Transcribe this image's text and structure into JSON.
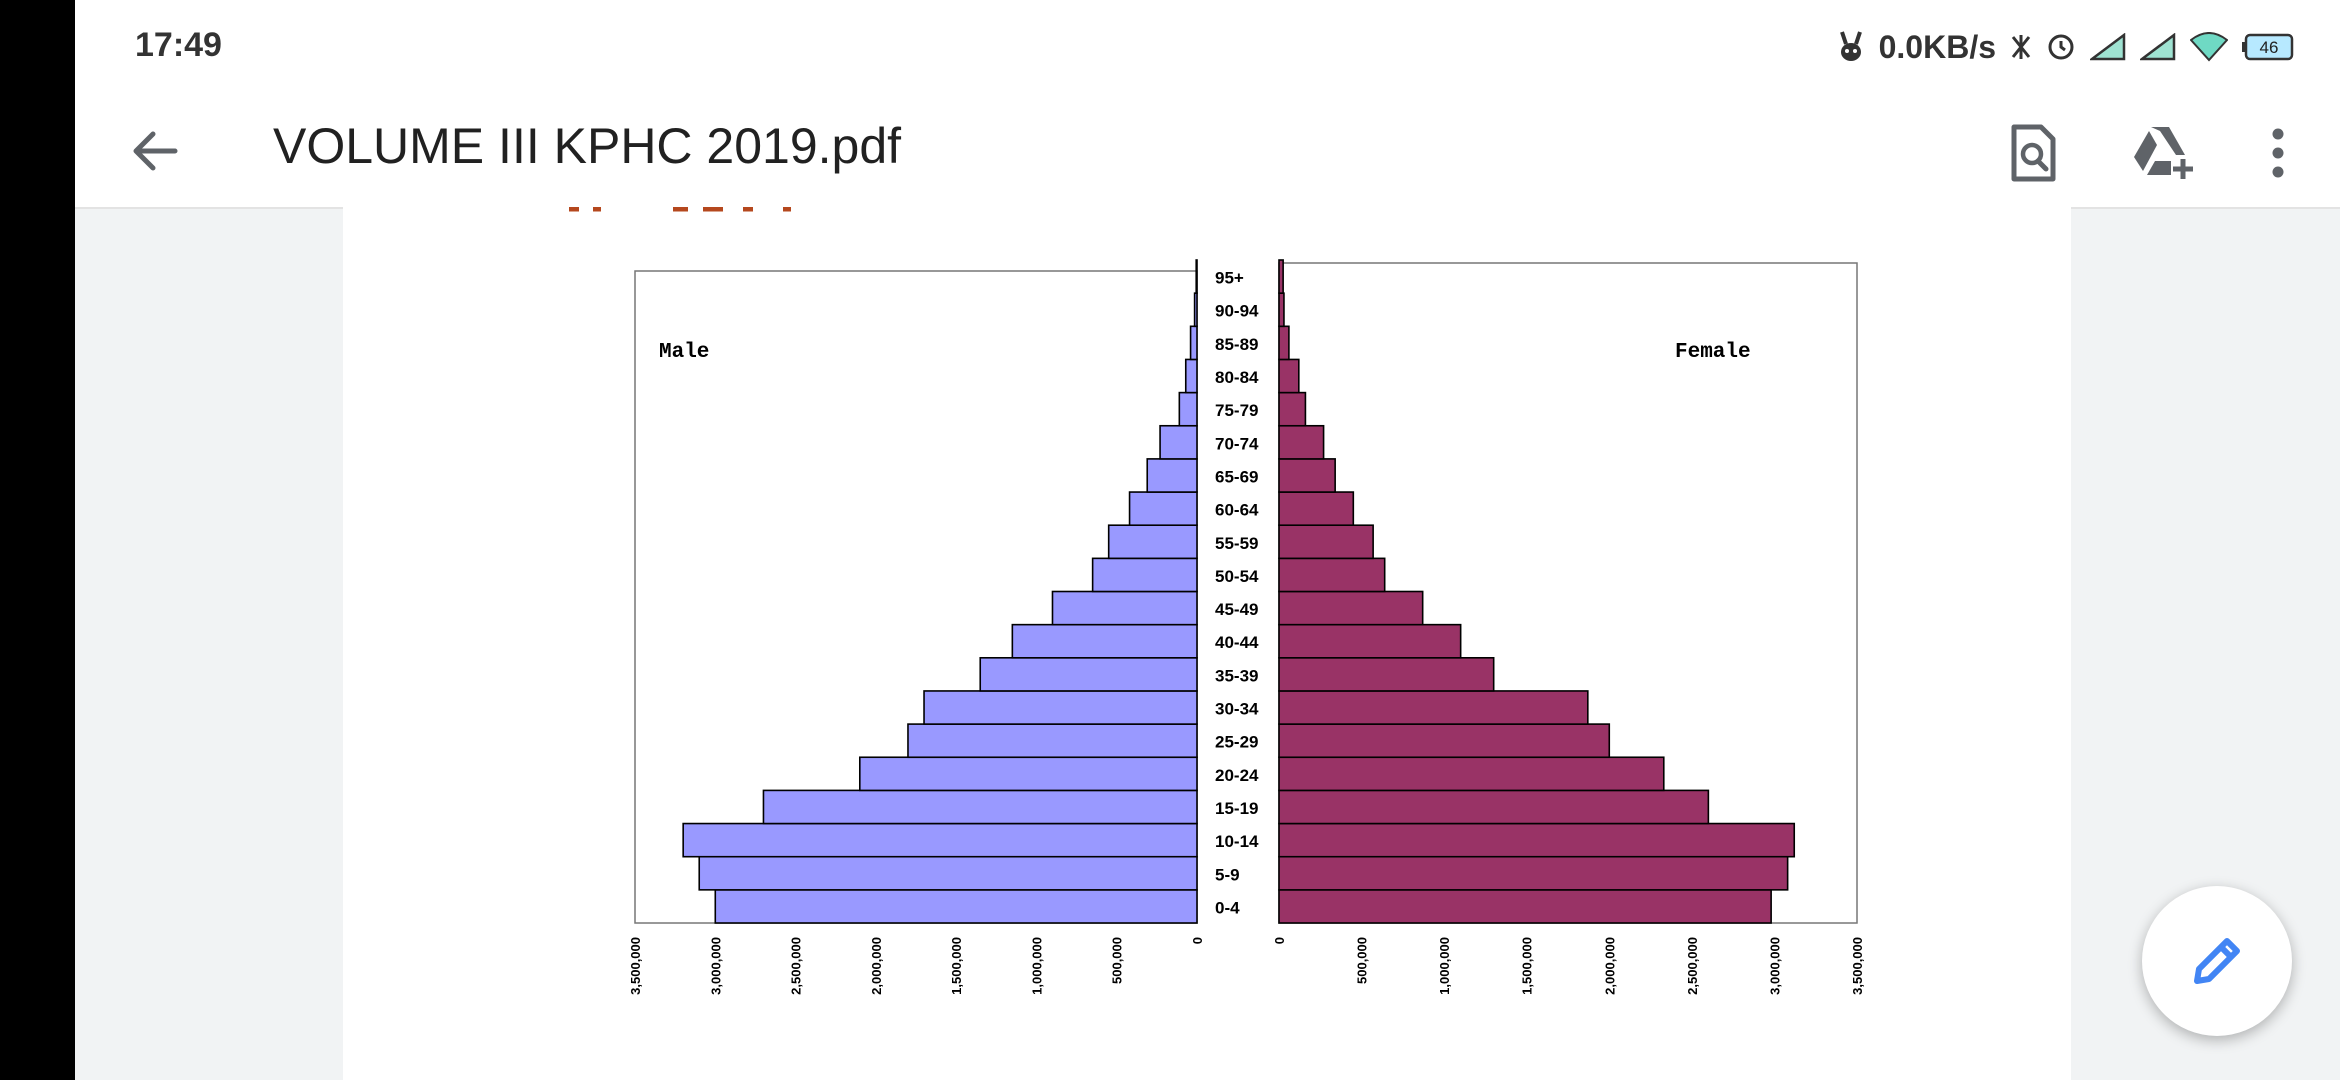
{
  "status_bar": {
    "time": "17:49",
    "net_speed": "0.0KB/s",
    "battery": "46",
    "icons": [
      "mascot-icon",
      "nfc-icon",
      "alarm-icon",
      "signal-icon",
      "signal-icon",
      "wifi-icon",
      "battery-icon"
    ]
  },
  "app_bar": {
    "title": "VOLUME III KPHC 2019.pdf",
    "icons": [
      "back-arrow-icon",
      "find-in-document-icon",
      "add-to-drive-icon",
      "more-vert-icon"
    ]
  },
  "fab": {
    "icon": "pencil-edit-icon"
  },
  "colors": {
    "male": "#9999ff",
    "female": "#993366",
    "accent": "#4285f4"
  },
  "chart_data": {
    "type": "bar",
    "subtype": "population-pyramid",
    "categories": [
      "0-4",
      "5-9",
      "10-14",
      "15-19",
      "20-24",
      "25-29",
      "30-34",
      "35-39",
      "40-44",
      "45-49",
      "50-54",
      "55-59",
      "60-64",
      "65-69",
      "70-74",
      "75-79",
      "80-84",
      "85-89",
      "90-94",
      "95+"
    ],
    "series": [
      {
        "name": "Male",
        "values": [
          3000000,
          3100000,
          3200000,
          2700000,
          2100000,
          1800000,
          1700000,
          1350000,
          1150000,
          900000,
          650000,
          550000,
          420000,
          310000,
          230000,
          110000,
          70000,
          40000,
          15000,
          5000
        ]
      },
      {
        "name": "Female",
        "values": [
          2980000,
          3080000,
          3120000,
          2600000,
          2330000,
          2000000,
          1870000,
          1300000,
          1100000,
          870000,
          640000,
          570000,
          450000,
          340000,
          270000,
          160000,
          120000,
          60000,
          30000,
          25000
        ]
      }
    ],
    "male_axis_ticks": [
      "3,500,000",
      "3,000,000",
      "2,500,000",
      "2,000,000",
      "1,500,000",
      "1,000,000",
      "500,000",
      "0"
    ],
    "female_axis_ticks": [
      "0",
      "500,000",
      "1,000,000",
      "1,500,000",
      "2,000,000",
      "2,500,000",
      "3,000,000",
      "3,500,000"
    ],
    "xlim": [
      0,
      3500000
    ],
    "legend": "none",
    "grid": false
  }
}
